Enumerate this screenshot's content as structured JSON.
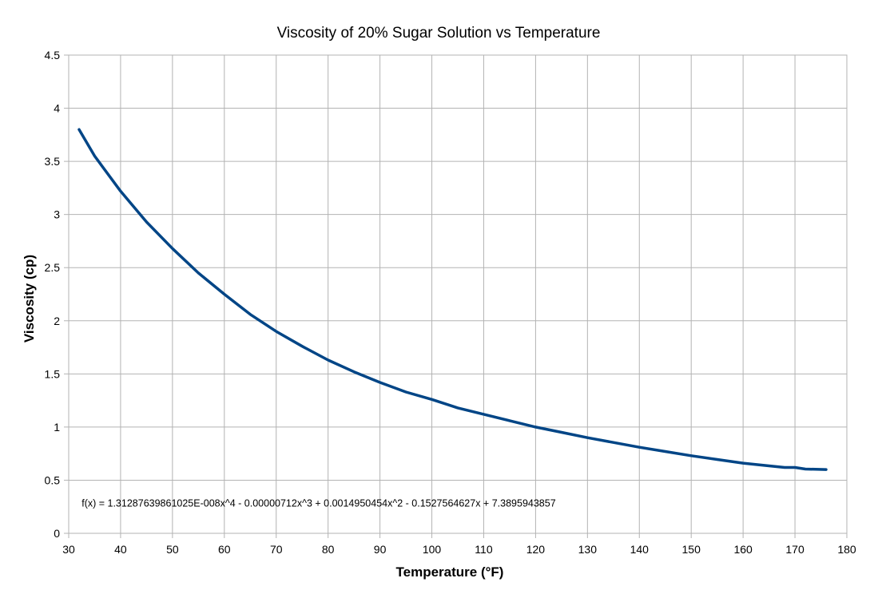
{
  "chart_data": {
    "type": "line",
    "title": "Viscosity of 20% Sugar Solution vs Temperature",
    "xlabel": "Temperature (°F)",
    "ylabel": "Viscosity (cp)",
    "xlim": [
      30,
      180
    ],
    "ylim": [
      0,
      4.5
    ],
    "xticks": [
      30,
      40,
      50,
      60,
      70,
      80,
      90,
      100,
      110,
      120,
      130,
      140,
      150,
      160,
      170,
      180
    ],
    "yticks": [
      0,
      0.5,
      1,
      1.5,
      2,
      2.5,
      3,
      3.5,
      4,
      4.5
    ],
    "grid": true,
    "legend": "none",
    "series_color": "#004586",
    "series": [
      {
        "x": [
          32,
          35,
          40,
          45,
          50,
          55,
          60,
          65,
          70,
          75,
          80,
          85,
          90,
          95,
          100,
          105,
          110,
          115,
          120,
          125,
          130,
          135,
          140,
          145,
          150,
          155,
          160,
          165,
          168,
          170,
          172,
          176
        ],
        "values": [
          3.8,
          3.55,
          3.22,
          2.93,
          2.68,
          2.45,
          2.25,
          2.06,
          1.9,
          1.76,
          1.63,
          1.52,
          1.42,
          1.33,
          1.26,
          1.18,
          1.12,
          1.06,
          1.0,
          0.95,
          0.9,
          0.855,
          0.81,
          0.77,
          0.73,
          0.695,
          0.66,
          0.635,
          0.62,
          0.62,
          0.605,
          0.6
        ]
      }
    ],
    "annotations": [
      {
        "text": "f(x) = 1.31287639861025E-008x^4 - 0.00000712x^3 + 0.0014950454x^2 - 0.1527564627x + 7.3895943857",
        "x": 32.5,
        "y": 0.25
      }
    ]
  }
}
